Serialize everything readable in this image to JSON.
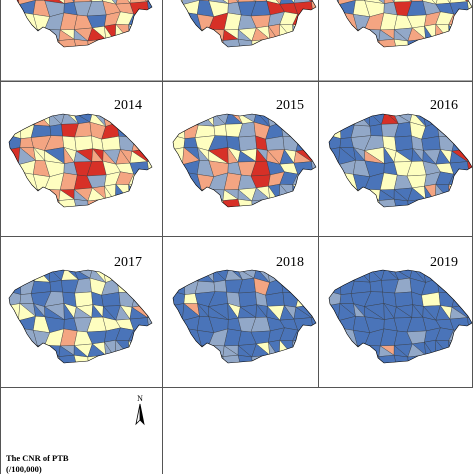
{
  "colors": {
    "dark_red": "#d73027",
    "orange": "#f4a582",
    "light_yellow": "#fefec0",
    "light_blue_gray": "#92a8c8",
    "blue": "#4a74b9",
    "border": "#000000",
    "panel_frame": "#555555"
  },
  "panels": [
    {
      "year": "",
      "distribution": [
        0.1,
        0.4,
        0.2,
        0.22,
        0.08
      ]
    },
    {
      "year": "",
      "distribution": [
        0.14,
        0.26,
        0.36,
        0.16,
        0.08
      ]
    },
    {
      "year": "",
      "distribution": [
        0.1,
        0.22,
        0.36,
        0.18,
        0.14
      ]
    },
    {
      "year": "2014",
      "distribution": [
        0.12,
        0.22,
        0.34,
        0.2,
        0.12
      ]
    },
    {
      "year": "2015",
      "distribution": [
        0.06,
        0.12,
        0.34,
        0.3,
        0.18
      ]
    },
    {
      "year": "2016",
      "distribution": [
        0.03,
        0.04,
        0.26,
        0.28,
        0.39
      ]
    },
    {
      "year": "2017",
      "distribution": [
        0.0,
        0.02,
        0.18,
        0.34,
        0.46
      ]
    },
    {
      "year": "2018",
      "distribution": [
        0.0,
        0.02,
        0.04,
        0.28,
        0.66
      ]
    },
    {
      "year": "2019",
      "distribution": [
        0.0,
        0.02,
        0.02,
        0.12,
        0.84
      ]
    }
  ],
  "legend": {
    "north_label": "N",
    "title_line1": "The CNR of PTB",
    "title_line2": "(/100,000)"
  }
}
